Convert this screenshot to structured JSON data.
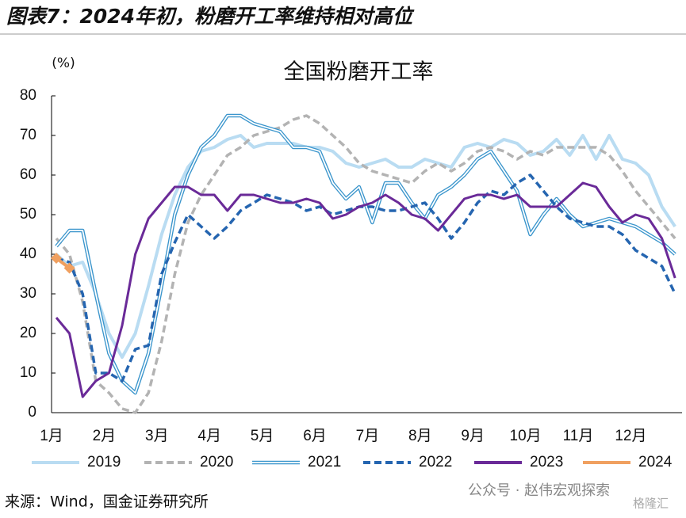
{
  "header": {
    "title": "图表7：2024年初，粉磨开工率维持相对高位"
  },
  "footer": {
    "source": "来源：Wind，国金证券研究所",
    "watermark": "公众号 · 赵伟宏观探索",
    "logo": "格隆汇"
  },
  "chart_data": {
    "type": "line",
    "title": "全国粉磨开工率",
    "y_label": "(%)",
    "categories": [
      "1月",
      null,
      null,
      null,
      "2月",
      null,
      null,
      null,
      "3月",
      null,
      null,
      null,
      "4月",
      null,
      null,
      null,
      "5月",
      null,
      null,
      null,
      "6月",
      null,
      null,
      null,
      "7月",
      null,
      null,
      null,
      "8月",
      null,
      null,
      null,
      "9月",
      null,
      null,
      null,
      "10月",
      null,
      null,
      null,
      "11月",
      null,
      null,
      null,
      "12月",
      null,
      null,
      null
    ],
    "ylim": [
      0,
      80
    ],
    "yticks": [
      0,
      10,
      20,
      30,
      40,
      50,
      60,
      70,
      80
    ],
    "grid": false,
    "legend": "bottom",
    "series": [
      {
        "name": "2019",
        "color": "#b9dcf2",
        "dash": false,
        "double": false,
        "values": [
          40,
          37,
          38,
          30,
          20,
          14,
          20,
          32,
          45,
          55,
          62,
          66,
          67,
          69,
          70,
          67,
          68,
          68,
          68,
          67,
          67,
          66,
          63,
          62,
          63,
          64,
          62,
          62,
          64,
          63,
          62,
          67,
          68,
          67,
          69,
          68,
          65,
          66,
          69,
          65,
          70,
          64,
          70,
          64,
          63,
          60,
          52,
          47
        ]
      },
      {
        "name": "2020",
        "color": "#b3b3b3",
        "dash": true,
        "double": false,
        "values": [
          44,
          40,
          28,
          8,
          5,
          1,
          0,
          5,
          18,
          35,
          48,
          55,
          60,
          65,
          67,
          70,
          71,
          72,
          74,
          75,
          73,
          70,
          67,
          63,
          61,
          60,
          59,
          58,
          61,
          63,
          61,
          63,
          66,
          67,
          66,
          64,
          66,
          65,
          67,
          67,
          67,
          67,
          65,
          61,
          56,
          52,
          48,
          44
        ]
      },
      {
        "name": "2021",
        "color": "#3a95cc",
        "dash": false,
        "double": true,
        "values": [
          42,
          46,
          46,
          30,
          15,
          8,
          5,
          15,
          32,
          50,
          60,
          67,
          70,
          75,
          75,
          73,
          72,
          71,
          67,
          67,
          66,
          58,
          54,
          57,
          48,
          58,
          58,
          53,
          49,
          55,
          57,
          60,
          64,
          66,
          61,
          56,
          45,
          50,
          54,
          50,
          47,
          48,
          49,
          48,
          47,
          45,
          43,
          40
        ]
      },
      {
        "name": "2022",
        "color": "#2565b0",
        "dash": true,
        "double": false,
        "values": [
          39,
          38,
          30,
          10,
          10,
          8,
          16,
          17,
          35,
          43,
          50,
          47,
          44,
          47,
          51,
          53,
          55,
          54,
          53,
          51,
          52,
          50,
          51,
          52,
          52,
          51,
          51,
          52,
          53,
          49,
          44,
          48,
          53,
          56,
          55,
          58,
          60,
          56,
          52,
          49,
          48,
          47,
          47,
          45,
          41,
          39,
          37,
          30
        ]
      },
      {
        "name": "2023",
        "color": "#6a2a98",
        "dash": false,
        "double": false,
        "values": [
          24,
          20,
          4,
          8,
          10,
          22,
          40,
          49,
          53,
          57,
          57,
          55,
          55,
          51,
          55,
          55,
          54,
          53,
          53,
          54,
          53,
          49,
          50,
          52,
          53,
          55,
          53,
          50,
          49,
          46,
          50,
          54,
          55,
          55,
          54,
          55,
          52,
          52,
          52,
          55,
          58,
          57,
          52,
          48,
          50,
          49,
          44,
          34
        ]
      },
      {
        "name": "2024",
        "color": "#f0a060",
        "dash": false,
        "double": false,
        "markers": true,
        "values": [
          39,
          36.5,
          null,
          null,
          null,
          null,
          null,
          null,
          null,
          null,
          null,
          null,
          null,
          null,
          null,
          null,
          null,
          null,
          null,
          null,
          null,
          null,
          null,
          null,
          null,
          null,
          null,
          null,
          null,
          null,
          null,
          null,
          null,
          null,
          null,
          null,
          null,
          null,
          null,
          null,
          null,
          null,
          null,
          null,
          null,
          null,
          null,
          null
        ]
      }
    ]
  }
}
